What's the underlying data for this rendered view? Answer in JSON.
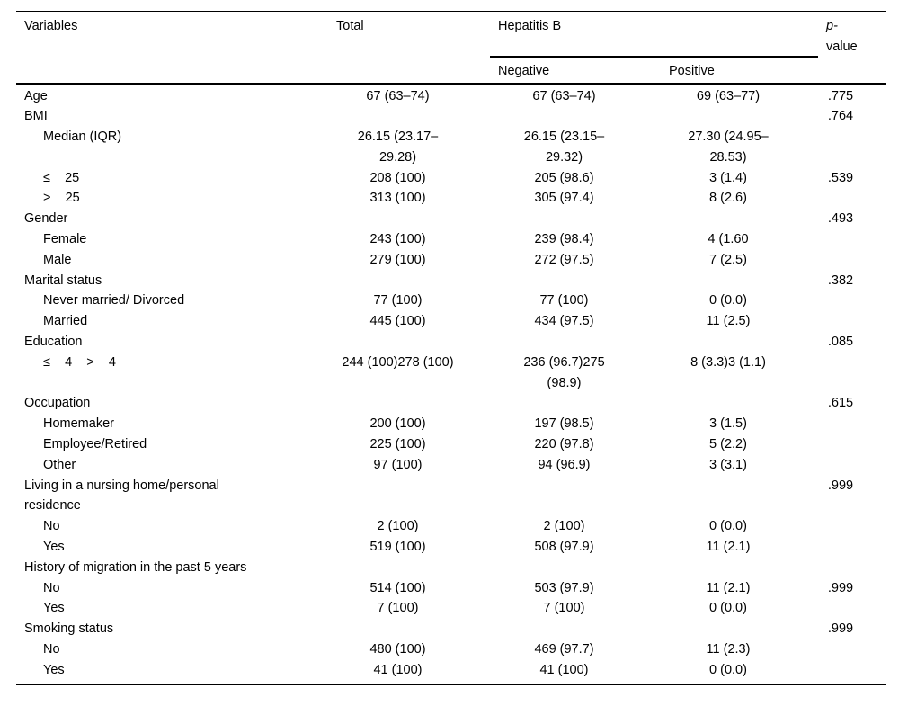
{
  "table": {
    "headers": {
      "variables": "Variables",
      "total": "Total",
      "hepatitis_b": "Hepatitis B",
      "negative": "Negative",
      "positive": "Positive",
      "p_line1": "p-",
      "p_line2": "value"
    },
    "rows": [
      {
        "label": "Age",
        "indent": false,
        "total": "67 (63–74)",
        "negative": "67 (63–74)",
        "positive": "69 (63–77)",
        "p": ".775"
      },
      {
        "label": "BMI",
        "indent": false,
        "total": "",
        "negative": "",
        "positive": "",
        "p": ".764"
      },
      {
        "label": "Median (IQR)",
        "indent": true,
        "total": "26.15 (23.17–\n29.28)",
        "negative": "26.15 (23.15–\n29.32)",
        "positive": "27.30 (24.95–\n28.53)",
        "p": ""
      },
      {
        "label": "≤    25",
        "indent": true,
        "total": "208 (100)",
        "negative": "205 (98.6)",
        "positive": "3 (1.4)",
        "p": ".539"
      },
      {
        "label": ">    25",
        "indent": true,
        "total": "313 (100)",
        "negative": "305 (97.4)",
        "positive": "8 (2.6)",
        "p": ""
      },
      {
        "label": "Gender",
        "indent": false,
        "total": "",
        "negative": "",
        "positive": "",
        "p": ".493"
      },
      {
        "label": "Female",
        "indent": true,
        "total": "243 (100)",
        "negative": "239 (98.4)",
        "positive": "4 (1.60",
        "p": ""
      },
      {
        "label": "Male",
        "indent": true,
        "total": "279 (100)",
        "negative": "272 (97.5)",
        "positive": "7 (2.5)",
        "p": ""
      },
      {
        "label": "Marital status",
        "indent": false,
        "total": "",
        "negative": "",
        "positive": "",
        "p": ".382"
      },
      {
        "label": "Never married/ Divorced",
        "indent": true,
        "total": "77 (100)",
        "negative": "77 (100)",
        "positive": "0 (0.0)",
        "p": ""
      },
      {
        "label": "Married",
        "indent": true,
        "total": "445 (100)",
        "negative": "434 (97.5)",
        "positive": "11 (2.5)",
        "p": ""
      },
      {
        "label": "Education",
        "indent": false,
        "total": "",
        "negative": "",
        "positive": "",
        "p": ".085"
      },
      {
        "label": "≤    4    >    4",
        "indent": true,
        "total": "244 (100)278 (100)",
        "negative": "236 (96.7)275\n(98.9)",
        "positive": "8 (3.3)3 (1.1)",
        "p": ""
      },
      {
        "label": "Occupation",
        "indent": false,
        "total": "",
        "negative": "",
        "positive": "",
        "p": ".615"
      },
      {
        "label": "Homemaker",
        "indent": true,
        "total": "200 (100)",
        "negative": "197 (98.5)",
        "positive": "3 (1.5)",
        "p": ""
      },
      {
        "label": "Employee/Retired",
        "indent": true,
        "total": "225 (100)",
        "negative": "220 (97.8)",
        "positive": "5 (2.2)",
        "p": ""
      },
      {
        "label": "Other",
        "indent": true,
        "total": "97 (100)",
        "negative": "94 (96.9)",
        "positive": "3 (3.1)",
        "p": ""
      },
      {
        "label": "Living in a nursing home/personal\nresidence",
        "indent": false,
        "total": "",
        "negative": "",
        "positive": "",
        "p": ".999"
      },
      {
        "label": "No",
        "indent": true,
        "total": "2 (100)",
        "negative": "2 (100)",
        "positive": "0 (0.0)",
        "p": ""
      },
      {
        "label": "Yes",
        "indent": true,
        "total": "519 (100)",
        "negative": "508 (97.9)",
        "positive": "11 (2.1)",
        "p": ""
      },
      {
        "label": "History of migration in the past 5 years",
        "indent": false,
        "total": "",
        "negative": "",
        "positive": "",
        "p": ""
      },
      {
        "label": "No",
        "indent": true,
        "total": "514 (100)",
        "negative": "503 (97.9)",
        "positive": "11 (2.1)",
        "p": ".999"
      },
      {
        "label": "Yes",
        "indent": true,
        "total": "7 (100)",
        "negative": "7 (100)",
        "positive": "0 (0.0)",
        "p": ""
      },
      {
        "label": "Smoking status",
        "indent": false,
        "total": "",
        "negative": "",
        "positive": "",
        "p": ".999"
      },
      {
        "label": "No",
        "indent": true,
        "total": "480 (100)",
        "negative": "469 (97.7)",
        "positive": "11 (2.3)",
        "p": ""
      },
      {
        "label": "Yes",
        "indent": true,
        "total": "41 (100)",
        "negative": "41 (100)",
        "positive": "0 (0.0)",
        "p": ""
      }
    ]
  }
}
